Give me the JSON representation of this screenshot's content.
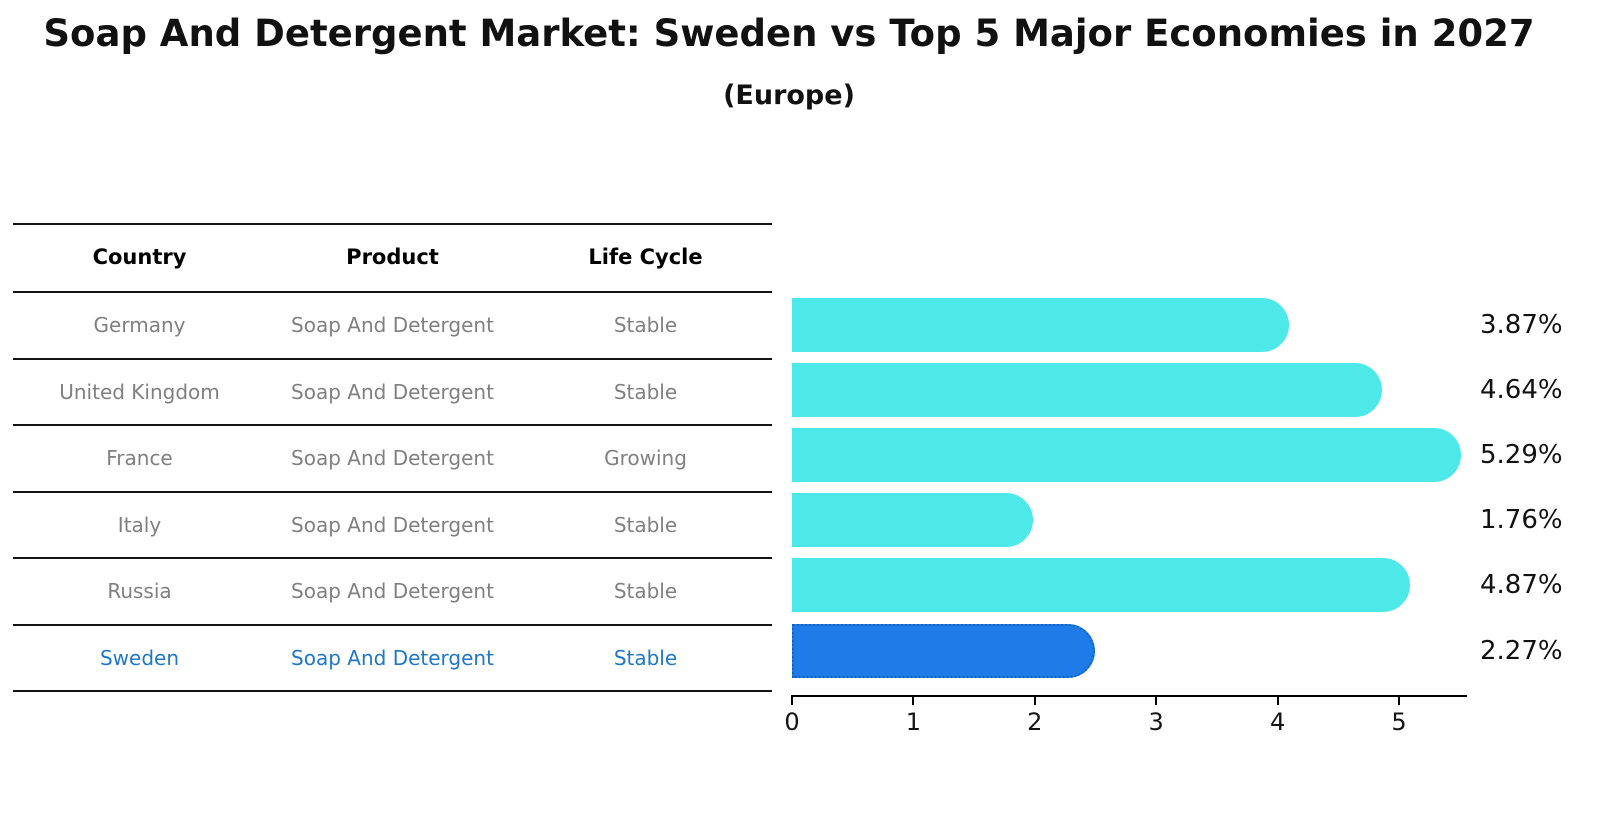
{
  "title": "Soap And Detergent Market: Sweden vs Top 5 Major Economies in 2027",
  "subtitle": "(Europe)",
  "table": {
    "headers": [
      "Country",
      "Product",
      "Life Cycle"
    ],
    "rows": [
      {
        "country": "Germany",
        "product": "Soap And Detergent",
        "life_cycle": "Stable",
        "highlight": false
      },
      {
        "country": "United Kingdom",
        "product": "Soap And Detergent",
        "life_cycle": "Stable",
        "highlight": false
      },
      {
        "country": "France",
        "product": "Soap And Detergent",
        "life_cycle": "Growing",
        "highlight": false
      },
      {
        "country": "Italy",
        "product": "Soap And Detergent",
        "life_cycle": "Stable",
        "highlight": false
      },
      {
        "country": "Russia",
        "product": "Soap And Detergent",
        "life_cycle": "Stable",
        "highlight": false
      },
      {
        "country": "Sweden",
        "product": "Soap And Detergent",
        "life_cycle": "Stable",
        "highlight": true
      }
    ]
  },
  "chart_data": {
    "type": "bar",
    "orientation": "horizontal",
    "title": "Soap And Detergent Market: Sweden vs Top 5 Major Economies in 2027",
    "subtitle": "(Europe)",
    "categories": [
      "Germany",
      "United Kingdom",
      "France",
      "Italy",
      "Russia",
      "Sweden"
    ],
    "values": [
      3.87,
      4.64,
      5.29,
      1.76,
      4.87,
      2.27
    ],
    "value_labels": [
      "3.87%",
      "4.64%",
      "5.29%",
      "1.76%",
      "4.87%",
      "2.27%"
    ],
    "x_ticks": [
      "0",
      "1",
      "2",
      "3",
      "4",
      "5"
    ],
    "xlim": [
      0,
      5.6
    ],
    "grid": false,
    "legend": false,
    "highlight_category": "Sweden"
  },
  "colors": {
    "bar": "#4DE8E8",
    "highlight_bar": "#1E7BE8",
    "highlight_border": "#1565C0",
    "highlight_text": "#1F77C8",
    "row_text": "#808080",
    "header_text": "#000000",
    "axis": "#000000"
  }
}
